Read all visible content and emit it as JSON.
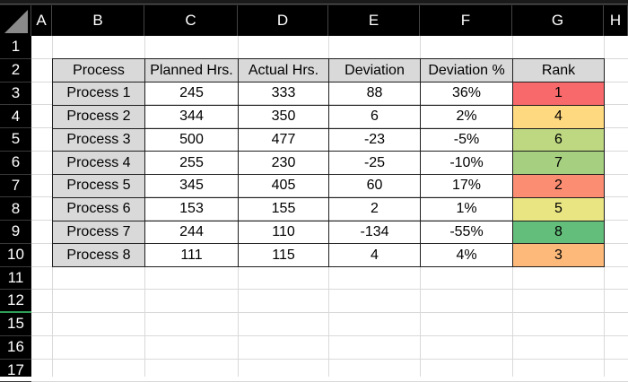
{
  "columns": [
    "A",
    "B",
    "C",
    "D",
    "E",
    "F",
    "G",
    "H"
  ],
  "rows": [
    "1",
    "2",
    "3",
    "4",
    "5",
    "6",
    "7",
    "8",
    "9",
    "10",
    "11",
    "12",
    "15",
    "16",
    "17"
  ],
  "table": {
    "headers": [
      "Process",
      "Planned Hrs.",
      "Actual Hrs.",
      "Deviation",
      "Deviation %",
      "Rank"
    ],
    "records": [
      {
        "process": "Process 1",
        "planned": "245",
        "actual": "333",
        "deviation": "88",
        "pct": "36%",
        "rank": "1"
      },
      {
        "process": "Process 2",
        "planned": "344",
        "actual": "350",
        "deviation": "6",
        "pct": "2%",
        "rank": "4"
      },
      {
        "process": "Process 3",
        "planned": "500",
        "actual": "477",
        "deviation": "-23",
        "pct": "-5%",
        "rank": "6"
      },
      {
        "process": "Process 4",
        "planned": "255",
        "actual": "230",
        "deviation": "-25",
        "pct": "-10%",
        "rank": "7"
      },
      {
        "process": "Process 5",
        "planned": "345",
        "actual": "405",
        "deviation": "60",
        "pct": "17%",
        "rank": "2"
      },
      {
        "process": "Process 6",
        "planned": "153",
        "actual": "155",
        "deviation": "2",
        "pct": "1%",
        "rank": "5"
      },
      {
        "process": "Process 7",
        "planned": "244",
        "actual": "110",
        "deviation": "-134",
        "pct": "-55%",
        "rank": "8"
      },
      {
        "process": "Process 8",
        "planned": "111",
        "actual": "115",
        "deviation": "4",
        "pct": "4%",
        "rank": "3"
      }
    ]
  },
  "rank_colors": [
    "#f8696b",
    "#ffd97f",
    "#bdd881",
    "#a6cf7f",
    "#fb8d72",
    "#eae583",
    "#63be7b",
    "#fdb97a"
  ]
}
